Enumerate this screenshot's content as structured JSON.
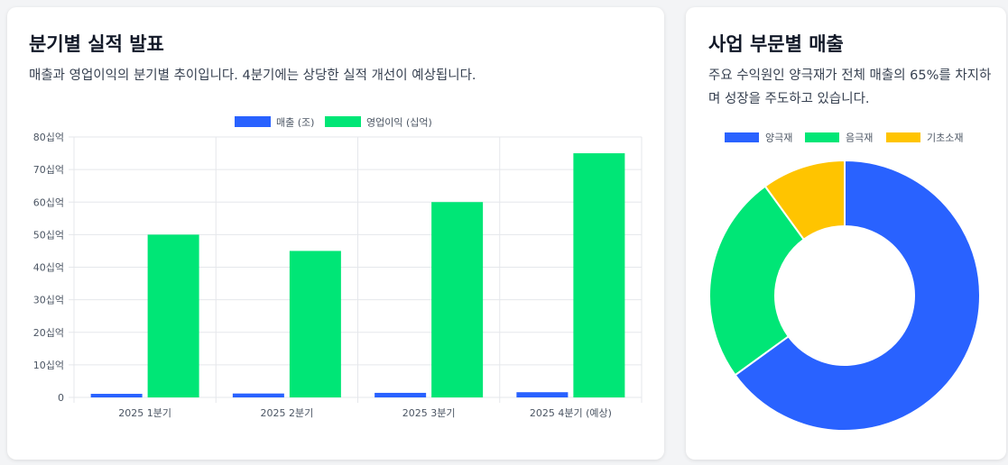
{
  "colors": {
    "revenue": "#2962ff",
    "profit": "#00e676",
    "cathode": "#2962ff",
    "anode": "#00e676",
    "basic": "#ffc400",
    "grid": "#e5e7eb",
    "tick": "#4b5563"
  },
  "left_card": {
    "title": "분기별 실적 발표",
    "description": "매출과 영업이익의 분기별 추이입니다. 4분기에는 상당한 실적 개선이 예상됩니다."
  },
  "right_card": {
    "title": "사업 부문별 매출",
    "description": "주요 수익원인 양극재가 전체 매출의 65%를 차지하며 성장을 주도하고 있습니다."
  },
  "chart_data": [
    {
      "type": "bar",
      "categories": [
        "2025 1분기",
        "2025 2분기",
        "2025 3분기",
        "2025 4분기 (예상)"
      ],
      "series": [
        {
          "name": "매출 (조)",
          "values": [
            1.1,
            1.2,
            1.4,
            1.6
          ]
        },
        {
          "name": "영업이익 (십억)",
          "values": [
            50,
            45,
            60,
            75
          ]
        }
      ],
      "ylim": [
        0,
        80
      ],
      "yticks": [
        "0",
        "10십억",
        "20십억",
        "30십억",
        "40십억",
        "50십억",
        "60십억",
        "70십억",
        "80십억"
      ],
      "grid": true,
      "legend": "top"
    },
    {
      "type": "pie",
      "labels": [
        "양극재",
        "음극재",
        "기초소재"
      ],
      "values": [
        65,
        25,
        10
      ],
      "legend": "top"
    }
  ]
}
